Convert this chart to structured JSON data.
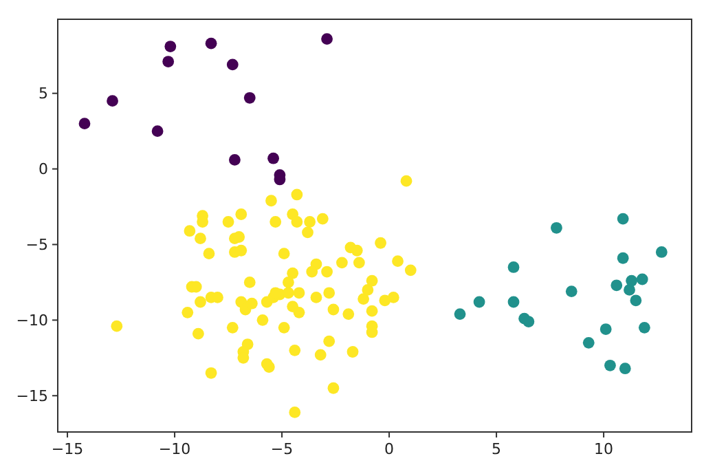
{
  "chart_data": {
    "type": "scatter",
    "xlim": [
      -15.45,
      14.1
    ],
    "ylim": [
      -17.4,
      9.9
    ],
    "xticks": [
      -15,
      -10,
      -5,
      0,
      5,
      10
    ],
    "yticks": [
      -15,
      -10,
      -5,
      0,
      5
    ],
    "grid": false,
    "marker": "circle",
    "series": [
      {
        "color": "#440154",
        "x": [
          -14.2,
          -12.9,
          -10.8,
          -10.3,
          -10.2,
          -8.3,
          -7.3,
          -6.5,
          -2.9,
          -7.2,
          -5.4,
          -5.1,
          -5.1
        ],
        "values": [
          3.0,
          4.5,
          2.5,
          7.1,
          8.1,
          8.3,
          6.9,
          4.7,
          8.6,
          0.6,
          0.7,
          -0.4,
          -0.7
        ]
      },
      {
        "color": "#21918c",
        "x": [
          3.3,
          4.2,
          5.8,
          5.8,
          6.3,
          6.5,
          7.8,
          8.5,
          9.3,
          10.1,
          10.3,
          11.0,
          10.9,
          10.9,
          10.6,
          11.2,
          11.3,
          11.8,
          11.5,
          11.9,
          12.7
        ],
        "values": [
          -9.6,
          -8.8,
          -6.5,
          -8.8,
          -9.9,
          -10.1,
          -3.9,
          -8.1,
          -11.5,
          -10.6,
          -13.0,
          -13.2,
          -3.3,
          -5.9,
          -7.7,
          -8.0,
          -7.4,
          -7.3,
          -8.7,
          -10.5,
          -5.5
        ]
      },
      {
        "color": "#fde725",
        "x": [
          0.8,
          -5.5,
          -4.3,
          -8.7,
          -8.7,
          -9.3,
          -8.8,
          -8.4,
          -7.5,
          -6.9,
          -7.2,
          -7.0,
          -7.2,
          -6.9,
          -5.3,
          -4.5,
          -4.3,
          -3.7,
          -3.8,
          -3.1,
          -4.9,
          -1.8,
          -1.5,
          -0.4,
          0.4,
          1.0,
          -2.2,
          -1.4,
          -3.4,
          -3.6,
          -2.9,
          -4.5,
          -4.7,
          -6.5,
          -9.2,
          -9.0,
          -8.3,
          -8.0,
          -8.8,
          -9.4,
          -6.9,
          -6.7,
          -6.4,
          -5.7,
          -5.4,
          -5.1,
          -4.7,
          -4.2,
          -4.5,
          -4.2,
          -3.4,
          -2.8,
          -2.6,
          -1.9,
          -1.2,
          -1.0,
          -0.8,
          -0.8,
          -0.2,
          0.2,
          -5.9,
          -7.3,
          -8.9,
          -4.9,
          -6.6,
          -6.8,
          -6.8,
          -5.7,
          -5.6,
          -4.4,
          -3.2,
          -2.8,
          -1.7,
          -0.8,
          -0.8,
          -8.3,
          -2.6,
          -4.4,
          -5.3,
          -12.7
        ],
        "values": [
          -0.8,
          -2.1,
          -1.7,
          -3.1,
          -3.5,
          -4.1,
          -4.6,
          -5.6,
          -3.5,
          -3.0,
          -4.6,
          -4.5,
          -5.5,
          -5.4,
          -3.5,
          -3.0,
          -3.5,
          -3.5,
          -4.2,
          -3.3,
          -5.6,
          -5.2,
          -5.4,
          -4.9,
          -6.1,
          -6.7,
          -6.2,
          -6.2,
          -6.3,
          -6.8,
          -6.8,
          -6.9,
          -7.5,
          -7.5,
          -7.8,
          -7.8,
          -8.5,
          -8.5,
          -8.8,
          -9.5,
          -8.8,
          -9.3,
          -8.9,
          -8.8,
          -8.5,
          -8.3,
          -8.2,
          -8.2,
          -9.1,
          -9.5,
          -8.5,
          -8.2,
          -9.3,
          -9.6,
          -8.6,
          -8.0,
          -7.4,
          -9.4,
          -8.7,
          -8.5,
          -10.0,
          -10.5,
          -10.9,
          -10.5,
          -11.6,
          -12.1,
          -12.5,
          -12.9,
          -13.1,
          -12.0,
          -12.3,
          -11.4,
          -12.1,
          -10.8,
          -10.4,
          -13.5,
          -14.5,
          -16.1,
          -8.2,
          -10.4
        ]
      }
    ]
  }
}
